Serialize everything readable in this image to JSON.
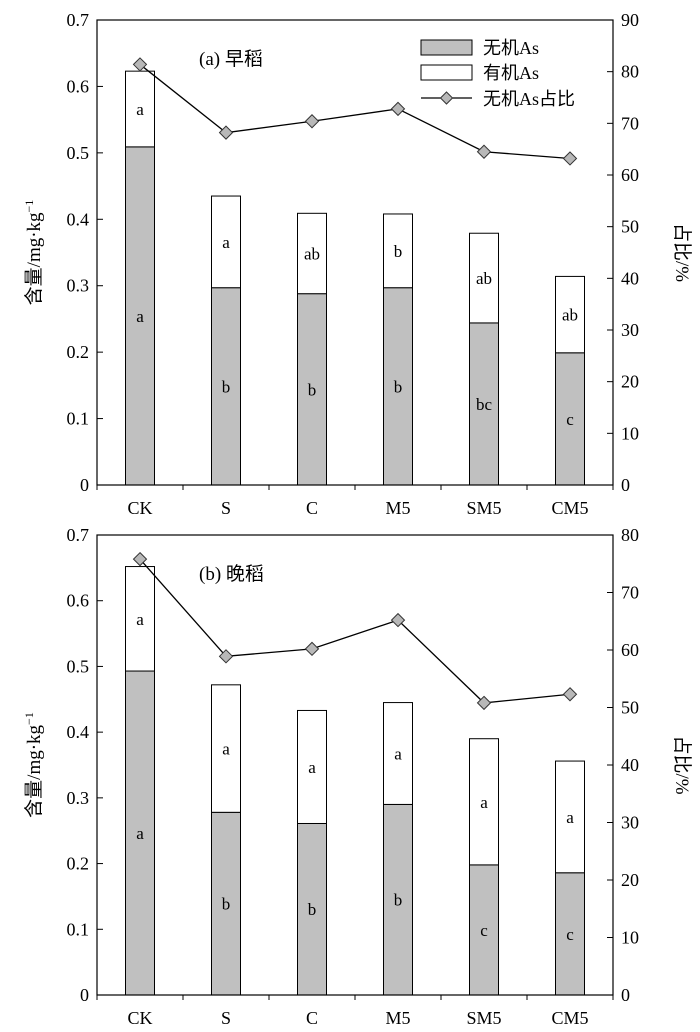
{
  "legend": {
    "inorganic": "无机As",
    "organic": "有机As",
    "ratio": "无机As占比"
  },
  "colors": {
    "inorganic_fill": "#c0c0c0",
    "organic_fill": "#ffffff",
    "line": "#000000",
    "marker_fill": "#b8b8b8"
  },
  "chart_data": [
    {
      "type": "bar",
      "stacked": true,
      "title": "(a) 早稻",
      "ylabel": "含量/mg·kg",
      "ylabel_superscript": "−1",
      "y2label": "占比/%",
      "categories": [
        "CK",
        "S",
        "C",
        "M5",
        "SM5",
        "CM5"
      ],
      "ylim": [
        0,
        0.7
      ],
      "yticks": [
        "0",
        "0.1",
        "0.2",
        "0.3",
        "0.4",
        "0.5",
        "0.6",
        "0.7"
      ],
      "y2lim": [
        0,
        90
      ],
      "y2ticks": [
        "0",
        "10",
        "20",
        "30",
        "40",
        "50",
        "60",
        "70",
        "80",
        "90"
      ],
      "series": [
        {
          "name": "无机As",
          "values": [
            0.509,
            0.297,
            0.288,
            0.297,
            0.244,
            0.199
          ],
          "letters": [
            "a",
            "b",
            "b",
            "b",
            "bc",
            "c"
          ]
        },
        {
          "name": "有机As",
          "values": [
            0.114,
            0.138,
            0.121,
            0.111,
            0.135,
            0.115
          ],
          "letters": [
            "a",
            "a",
            "ab",
            "b",
            "ab",
            "ab"
          ]
        },
        {
          "name": "无机As占比",
          "axis": "right",
          "values": [
            81.4,
            68.2,
            70.4,
            72.8,
            64.5,
            63.2
          ]
        }
      ],
      "legend_position": "top-right",
      "grid": false
    },
    {
      "type": "bar",
      "stacked": true,
      "title": "(b) 晚稻",
      "ylabel": "含量/mg·kg",
      "ylabel_superscript": "−1",
      "y2label": "占比/%",
      "categories": [
        "CK",
        "S",
        "C",
        "M5",
        "SM5",
        "CM5"
      ],
      "ylim": [
        0,
        0.7
      ],
      "yticks": [
        "0",
        "0.1",
        "0.2",
        "0.3",
        "0.4",
        "0.5",
        "0.6",
        "0.7"
      ],
      "y2lim": [
        0,
        80
      ],
      "y2ticks": [
        "0",
        "10",
        "20",
        "30",
        "40",
        "50",
        "60",
        "70",
        "80"
      ],
      "series": [
        {
          "name": "无机As",
          "values": [
            0.493,
            0.278,
            0.261,
            0.29,
            0.198,
            0.186
          ],
          "letters": [
            "a",
            "b",
            "b",
            "b",
            "c",
            "c"
          ]
        },
        {
          "name": "有机As",
          "values": [
            0.159,
            0.194,
            0.172,
            0.155,
            0.192,
            0.17
          ],
          "letters": [
            "a",
            "a",
            "a",
            "a",
            "a",
            "a"
          ]
        },
        {
          "name": "无机As占比",
          "axis": "right",
          "values": [
            75.8,
            58.9,
            60.2,
            65.2,
            50.8,
            52.3
          ]
        }
      ],
      "grid": false
    }
  ]
}
